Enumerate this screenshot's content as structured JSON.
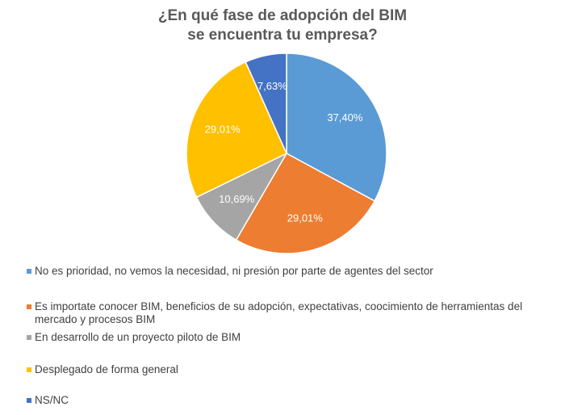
{
  "chart_data": {
    "type": "pie",
    "title_lines": [
      "¿En qué fase de adopción del BIM",
      "se encuentra tu empresa?"
    ],
    "slices": [
      {
        "name": "No es prioridad, no vemos la necesidad, ni presión por parte de agentes del sector",
        "value": 37.4,
        "label": "37,40%",
        "color": "#5b9bd5"
      },
      {
        "name": "Es importate conocer BIM, beneficios de su adopción, expectativas, coocimiento de herramientas del mercado y procesos BIM",
        "value": 29.01,
        "label": "29,01%",
        "color": "#ed7d31"
      },
      {
        "name": "En desarrollo de un proyecto piloto de BIM",
        "value": 10.69,
        "label": "10,69%",
        "color": "#a5a5a5"
      },
      {
        "name": "Desplegado de forma general",
        "value": 29.01,
        "label": "29,01%",
        "color": "#ffc000"
      },
      {
        "name": "NS/NC",
        "value": 7.63,
        "label": "7,63%",
        "color": "#4472c4"
      }
    ],
    "legend_position": "bottom",
    "label_color": "#ffffff"
  }
}
